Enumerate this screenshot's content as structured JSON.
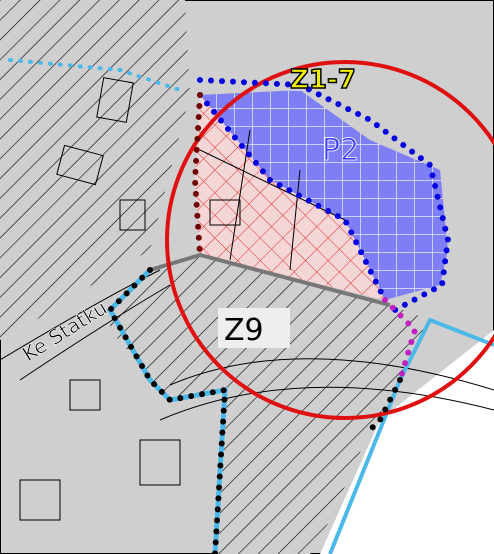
{
  "labels": {
    "zone_top": "Z1-7",
    "zone_blue": "P2",
    "zone_hatched": "Z9",
    "street": "Ke Statku"
  }
}
